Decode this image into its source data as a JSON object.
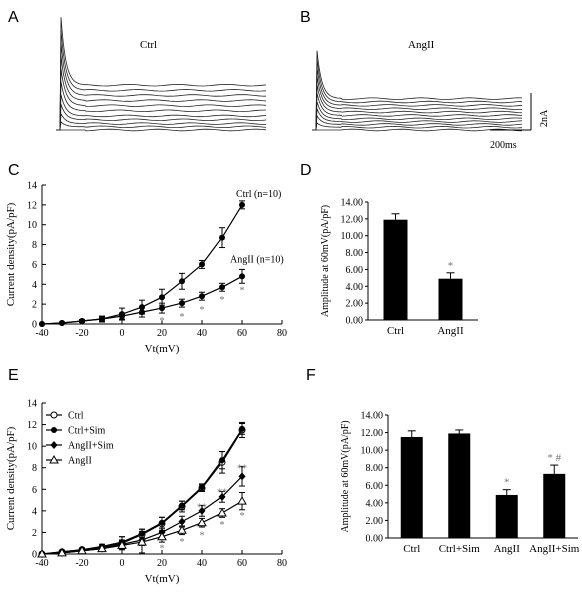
{
  "panel_labels": {
    "a": "A",
    "b": "B",
    "c": "C",
    "d": "D",
    "e": "E",
    "f": "F"
  },
  "traces": {
    "ctrl_title": "Ctrl",
    "angii_title": "AngII",
    "scale_current": "2nA",
    "scale_time": "200ms",
    "ctrl_steady_levels": [
      0.0,
      0.05,
      0.1,
      0.16,
      0.22,
      0.3,
      0.38,
      0.46,
      0.54,
      0.62,
      0.7
    ],
    "angii_steady_levels": [
      0.0,
      0.05,
      0.1,
      0.15,
      0.2,
      0.26,
      0.32,
      0.38,
      0.44,
      0.5,
      0.56
    ]
  },
  "chart_data": [
    {
      "panel": "C",
      "type": "line",
      "xlabel": "Vt(mV)",
      "ylabel": "Current density(pA/pF)",
      "xlim": [
        -40,
        80
      ],
      "ylim": [
        0,
        14
      ],
      "xticks": [
        -40,
        -20,
        0,
        20,
        40,
        60,
        80
      ],
      "yticks": [
        0,
        2,
        4,
        6,
        8,
        10,
        12,
        14
      ],
      "x": [
        -40,
        -30,
        -20,
        -10,
        0,
        10,
        20,
        30,
        40,
        50,
        60
      ],
      "series": [
        {
          "name": "Ctrl (n=10)",
          "marker": "filled-circle",
          "values": [
            0.0,
            0.1,
            0.3,
            0.5,
            1.0,
            1.7,
            2.7,
            4.3,
            6.0,
            8.7,
            12.0
          ],
          "errors": [
            0.05,
            0.1,
            0.15,
            0.3,
            0.6,
            0.7,
            0.8,
            0.8,
            0.4,
            1.0,
            0.4
          ]
        },
        {
          "name": "AngII (n=10)",
          "marker": "filled-circle",
          "values": [
            0.0,
            0.1,
            0.3,
            0.5,
            0.8,
            1.2,
            1.6,
            2.1,
            2.8,
            3.7,
            4.8
          ],
          "errors": [
            0.05,
            0.1,
            0.15,
            0.2,
            0.3,
            0.5,
            0.5,
            0.4,
            0.4,
            0.4,
            0.7
          ]
        }
      ],
      "annotations": [
        {
          "text": "*",
          "x": 20,
          "y": 0.4
        },
        {
          "text": "*",
          "x": 30,
          "y": 0.8
        },
        {
          "text": "*",
          "x": 40,
          "y": 1.5
        },
        {
          "text": "*",
          "x": 50,
          "y": 2.5
        },
        {
          "text": "*",
          "x": 60,
          "y": 3.5
        }
      ],
      "grid": false
    },
    {
      "panel": "D",
      "type": "bar",
      "ylabel": "Amplitude at 60mV(pA/pF)",
      "ylim": [
        0,
        14
      ],
      "yticks": [
        "0.00",
        "2.00",
        "4.00",
        "6.00",
        "8.00",
        "10.00",
        "12.00",
        "14.00"
      ],
      "categories": [
        "Ctrl",
        "AngII"
      ],
      "values": [
        11.9,
        4.9
      ],
      "errors": [
        0.7,
        0.7
      ],
      "annotations": [
        {
          "text": "*",
          "category": "AngII"
        }
      ],
      "grid": false
    },
    {
      "panel": "E",
      "type": "line",
      "xlabel": "Vt(mV)",
      "ylabel": "Current density(pA/pF)",
      "xlim": [
        -40,
        80
      ],
      "ylim": [
        0,
        14
      ],
      "xticks": [
        -40,
        -20,
        0,
        20,
        40,
        60,
        80
      ],
      "yticks": [
        0,
        2,
        4,
        6,
        8,
        10,
        12,
        14
      ],
      "x": [
        -40,
        -30,
        -20,
        -10,
        0,
        10,
        20,
        30,
        40,
        50,
        60
      ],
      "legend_position": "top-left",
      "series": [
        {
          "name": "Ctrl",
          "marker": "open-circle",
          "values": [
            0.0,
            0.2,
            0.4,
            0.6,
            1.0,
            1.8,
            2.8,
            4.4,
            6.1,
            8.5,
            11.5
          ],
          "errors": [
            0.05,
            0.1,
            0.15,
            0.3,
            0.6,
            0.5,
            0.6,
            0.5,
            0.3,
            1.0,
            0.7
          ]
        },
        {
          "name": "Ctrl+Sim",
          "marker": "filled-circle",
          "values": [
            0.0,
            0.2,
            0.4,
            0.7,
            1.1,
            1.9,
            2.9,
            4.5,
            6.2,
            8.7,
            11.6
          ],
          "errors": [
            0.05,
            0.1,
            0.15,
            0.2,
            0.5,
            0.4,
            0.5,
            0.4,
            0.3,
            0.8,
            0.5
          ]
        },
        {
          "name": "AngII+Sim",
          "marker": "filled-diamond",
          "values": [
            0.0,
            0.1,
            0.3,
            0.5,
            0.9,
            1.3,
            2.0,
            3.0,
            4.0,
            5.3,
            7.2
          ],
          "errors": [
            0.05,
            0.1,
            0.15,
            0.2,
            0.4,
            0.5,
            0.4,
            0.5,
            0.5,
            0.5,
            0.9
          ]
        },
        {
          "name": "AngII",
          "marker": "open-triangle",
          "values": [
            0.0,
            0.1,
            0.3,
            0.5,
            0.8,
            1.1,
            1.6,
            2.2,
            2.9,
            3.8,
            4.9
          ],
          "errors": [
            0.05,
            0.1,
            0.15,
            0.2,
            0.4,
            1.0,
            0.5,
            0.4,
            0.4,
            0.4,
            0.8
          ]
        }
      ],
      "annotations": [
        {
          "text": "*",
          "x": 20,
          "y": 0.6
        },
        {
          "text": "*",
          "x": 30,
          "y": 1.2
        },
        {
          "text": "*",
          "x": 40,
          "y": 1.8
        },
        {
          "text": "*",
          "x": 50,
          "y": 2.8
        },
        {
          "text": "*",
          "x": 60,
          "y": 3.6
        },
        {
          "text": "**",
          "x": 40,
          "y": 4.4
        },
        {
          "text": "**",
          "x": 50,
          "y": 5.8
        },
        {
          "text": "**",
          "x": 60,
          "y": 8.0
        }
      ],
      "grid": false
    },
    {
      "panel": "F",
      "type": "bar",
      "ylabel": "Amplitude at 60mV(pA/pF)",
      "ylim": [
        0,
        14
      ],
      "yticks": [
        "0.00",
        "2.00",
        "4.00",
        "6.00",
        "8.00",
        "10.00",
        "12.00",
        "14.00"
      ],
      "categories": [
        "Ctrl",
        "Ctrl+Sim",
        "AngII",
        "AngII+Sim"
      ],
      "values": [
        11.5,
        11.9,
        4.9,
        7.3
      ],
      "errors": [
        0.7,
        0.4,
        0.6,
        1.0
      ],
      "annotations": [
        {
          "text": "*",
          "category": "AngII"
        },
        {
          "text": "* #",
          "category": "AngII+Sim"
        }
      ],
      "grid": false
    }
  ]
}
